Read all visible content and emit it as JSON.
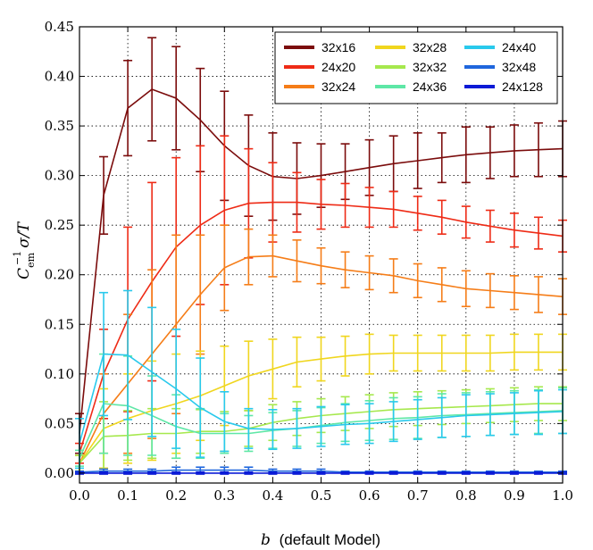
{
  "chart_data": {
    "type": "line",
    "title": "",
    "xlabel_var": "b",
    "xlabel_text": "(default Model)",
    "ylabel": "C_em^{-1} σ/T",
    "ylabel_parts": {
      "c": "C",
      "sub": "em",
      "sup": "−1",
      "rest": "σ/T"
    },
    "xlim": [
      0.0,
      1.0
    ],
    "ylim": [
      -0.01,
      0.45
    ],
    "x_ticks": [
      0.0,
      0.1,
      0.2,
      0.3,
      0.4,
      0.5,
      0.6,
      0.7,
      0.8,
      0.9,
      1.0
    ],
    "x_tick_labels": [
      "0.0",
      "0.1",
      "0.2",
      "0.3",
      "0.4",
      "0.5",
      "0.6",
      "0.7",
      "0.8",
      "0.9",
      "1.0"
    ],
    "y_ticks": [
      0.0,
      0.05,
      0.1,
      0.15,
      0.2,
      0.25,
      0.3,
      0.35,
      0.4,
      0.45
    ],
    "y_tick_labels": [
      "0.00",
      "0.05",
      "0.10",
      "0.15",
      "0.20",
      "0.25",
      "0.30",
      "0.35",
      "0.40",
      "0.45"
    ],
    "grid": true,
    "legend_position": "top-right",
    "x": [
      0.0,
      0.05,
      0.1,
      0.15,
      0.2,
      0.25,
      0.3,
      0.35,
      0.4,
      0.45,
      0.5,
      0.55,
      0.6,
      0.65,
      0.7,
      0.75,
      0.8,
      0.85,
      0.9,
      0.95,
      1.0
    ],
    "series": [
      {
        "name": "32x16",
        "color": "#7b0c0c",
        "values": [
          0.04,
          0.28,
          0.368,
          0.387,
          0.378,
          0.356,
          0.33,
          0.31,
          0.299,
          0.297,
          0.3,
          0.304,
          0.308,
          0.312,
          0.315,
          0.318,
          0.321,
          0.323,
          0.325,
          0.326,
          0.327
        ],
        "errors": [
          0.02,
          0.039,
          0.048,
          0.052,
          0.052,
          0.052,
          0.055,
          0.051,
          0.044,
          0.036,
          0.032,
          0.028,
          0.028,
          0.028,
          0.028,
          0.025,
          0.028,
          0.026,
          0.026,
          0.027,
          0.028
        ]
      },
      {
        "name": "24x20",
        "color": "#ee2b16",
        "values": [
          0.02,
          0.1,
          0.155,
          0.193,
          0.228,
          0.25,
          0.265,
          0.272,
          0.273,
          0.273,
          0.271,
          0.27,
          0.268,
          0.266,
          0.262,
          0.258,
          0.253,
          0.249,
          0.245,
          0.242,
          0.239
        ],
        "errors": [
          0.01,
          0.045,
          0.093,
          0.1,
          0.09,
          0.08,
          0.075,
          0.055,
          0.04,
          0.03,
          0.025,
          0.022,
          0.02,
          0.018,
          0.017,
          0.017,
          0.016,
          0.016,
          0.017,
          0.016,
          0.016
        ]
      },
      {
        "name": "32x24",
        "color": "#f57d18",
        "values": [
          0.01,
          0.06,
          0.09,
          0.12,
          0.15,
          0.18,
          0.207,
          0.218,
          0.219,
          0.214,
          0.209,
          0.205,
          0.202,
          0.199,
          0.194,
          0.19,
          0.186,
          0.184,
          0.182,
          0.18,
          0.178
        ],
        "errors": [
          0.008,
          0.04,
          0.07,
          0.085,
          0.09,
          0.06,
          0.043,
          0.028,
          0.021,
          0.021,
          0.018,
          0.018,
          0.017,
          0.017,
          0.017,
          0.017,
          0.018,
          0.017,
          0.017,
          0.018,
          0.018
        ]
      },
      {
        "name": "32x28",
        "color": "#f0d61e",
        "values": [
          0.01,
          0.045,
          0.055,
          0.063,
          0.07,
          0.078,
          0.088,
          0.098,
          0.105,
          0.112,
          0.115,
          0.118,
          0.12,
          0.121,
          0.121,
          0.121,
          0.121,
          0.121,
          0.122,
          0.122,
          0.122
        ],
        "errors": [
          0.008,
          0.04,
          0.045,
          0.05,
          0.05,
          0.045,
          0.04,
          0.035,
          0.03,
          0.025,
          0.022,
          0.02,
          0.02,
          0.018,
          0.018,
          0.018,
          0.018,
          0.018,
          0.018,
          0.018,
          0.018
        ]
      },
      {
        "name": "32x32",
        "color": "#a6e84d",
        "values": [
          0.01,
          0.037,
          0.038,
          0.04,
          0.04,
          0.042,
          0.042,
          0.045,
          0.051,
          0.055,
          0.058,
          0.06,
          0.062,
          0.064,
          0.065,
          0.066,
          0.067,
          0.068,
          0.069,
          0.07,
          0.07
        ],
        "errors": [
          0.008,
          0.035,
          0.025,
          0.025,
          0.025,
          0.022,
          0.02,
          0.018,
          0.018,
          0.017,
          0.017,
          0.017,
          0.017,
          0.017,
          0.017,
          0.017,
          0.017,
          0.017,
          0.017,
          0.017,
          0.017
        ]
      },
      {
        "name": "24x36",
        "color": "#5ee7a6",
        "values": [
          0.015,
          0.07,
          0.068,
          0.058,
          0.047,
          0.04,
          0.04,
          0.04,
          0.043,
          0.045,
          0.048,
          0.051,
          0.053,
          0.055,
          0.056,
          0.058,
          0.059,
          0.06,
          0.061,
          0.062,
          0.063
        ],
        "errors": [
          0.008,
          0.05,
          0.05,
          0.04,
          0.032,
          0.025,
          0.02,
          0.018,
          0.018,
          0.018,
          0.018,
          0.019,
          0.02,
          0.021,
          0.021,
          0.022,
          0.022,
          0.022,
          0.022,
          0.022,
          0.023
        ]
      },
      {
        "name": "24x40",
        "color": "#29c9ec",
        "values": [
          0.03,
          0.12,
          0.119,
          0.102,
          0.085,
          0.066,
          0.052,
          0.045,
          0.044,
          0.045,
          0.047,
          0.049,
          0.05,
          0.052,
          0.054,
          0.056,
          0.058,
          0.059,
          0.06,
          0.061,
          0.062
        ],
        "errors": [
          0.025,
          0.062,
          0.065,
          0.065,
          0.06,
          0.05,
          0.03,
          0.02,
          0.02,
          0.02,
          0.02,
          0.02,
          0.02,
          0.02,
          0.02,
          0.02,
          0.021,
          0.021,
          0.021,
          0.022,
          0.022
        ]
      },
      {
        "name": "32x48",
        "color": "#1f66dd",
        "values": [
          0.001,
          0.002,
          0.002,
          0.002,
          0.003,
          0.003,
          0.003,
          0.003,
          0.002,
          0.002,
          0.002,
          0.001,
          0.001,
          0.001,
          0.001,
          0.001,
          0.001,
          0.001,
          0.001,
          0.001,
          0.001
        ],
        "errors": [
          0.001,
          0.002,
          0.002,
          0.002,
          0.003,
          0.003,
          0.003,
          0.003,
          0.002,
          0.002,
          0.002,
          0.001,
          0.001,
          0.001,
          0.001,
          0.001,
          0.001,
          0.001,
          0.001,
          0.001,
          0.001
        ]
      },
      {
        "name": "24x128",
        "color": "#0b1ad6",
        "values": [
          0.0,
          0.0,
          0.0,
          0.0,
          0.0,
          0.0,
          0.0,
          0.0,
          0.0,
          0.0,
          0.0,
          0.0,
          0.0,
          0.0,
          0.0,
          0.0,
          0.0,
          0.0,
          0.0,
          0.0,
          0.0
        ],
        "errors": [
          0.001,
          0.001,
          0.001,
          0.001,
          0.001,
          0.001,
          0.001,
          0.001,
          0.001,
          0.001,
          0.001,
          0.001,
          0.001,
          0.001,
          0.001,
          0.001,
          0.001,
          0.001,
          0.001,
          0.001,
          0.001
        ]
      }
    ],
    "legend_columns": [
      [
        "32x16",
        "24x20",
        "32x24"
      ],
      [
        "32x28",
        "32x32",
        "24x36"
      ],
      [
        "24x40",
        "32x48",
        "24x128"
      ]
    ]
  }
}
